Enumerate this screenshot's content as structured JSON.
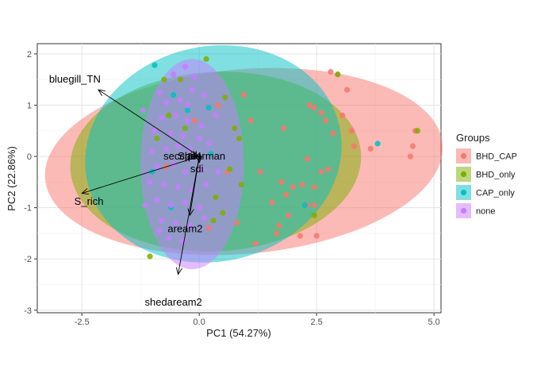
{
  "chart_data": {
    "type": "scatter",
    "subtype": "pca-biplot",
    "xlabel": "PC1 (54.27%)",
    "ylabel": "PC2 (22.86%)",
    "xlim": [
      -3.45,
      5.15
    ],
    "ylim": [
      -3.05,
      2.2
    ],
    "x_ticks": [
      -2.5,
      0.0,
      2.5,
      5.0
    ],
    "x_tick_labels": [
      "-2.5",
      "0.0",
      "2.5",
      "5.0"
    ],
    "y_ticks": [
      -3,
      -2,
      -1,
      0,
      1,
      2
    ],
    "y_tick_labels": [
      "-3",
      "-2",
      "-1",
      "0",
      "1",
      "2"
    ],
    "grid": true,
    "legend": {
      "title": "Groups",
      "placement": "right",
      "entries": [
        {
          "label": "BHD_CAP",
          "color": "#F8766D"
        },
        {
          "label": "BHD_only",
          "color": "#7CAE00"
        },
        {
          "label": "CAP_only",
          "color": "#00BFC4"
        },
        {
          "label": "none",
          "color": "#C77CFF"
        }
      ]
    },
    "ellipses": [
      {
        "group": "BHD_CAP",
        "cx": 0.95,
        "cy": -0.1,
        "rx": 4.25,
        "ry": 1.8,
        "angle_deg": 5
      },
      {
        "group": "BHD_only",
        "cx": 0.35,
        "cy": -0.1,
        "rx": 3.1,
        "ry": 1.75,
        "angle_deg": 3
      },
      {
        "group": "CAP_only",
        "cx": 0.3,
        "cy": 0.05,
        "rx": 2.75,
        "ry": 2.1,
        "angle_deg": 12
      },
      {
        "group": "none",
        "cx": -0.15,
        "cy": -0.15,
        "rx": 1.1,
        "ry": 2.05,
        "angle_deg": 0
      }
    ],
    "loadings": [
      {
        "name": "bluegill_TN",
        "x": -2.15,
        "y": 1.3,
        "label_x": -2.65,
        "label_y": 1.5
      },
      {
        "name": "S_rich",
        "x": -2.5,
        "y": -0.72,
        "label_x": -2.35,
        "label_y": -0.88
      },
      {
        "name": "shedaream2",
        "x": -0.45,
        "y": -2.3,
        "label_x": -0.55,
        "label_y": -2.85
      },
      {
        "name": "aream2",
        "x": -0.2,
        "y": -1.15,
        "label_x": -0.3,
        "label_y": -1.42
      },
      {
        "name": "secchi",
        "x": -0.08,
        "y": 0.02,
        "label_x": -0.45,
        "label_y": 0.0
      },
      {
        "name": "pH",
        "x": 0.02,
        "y": 0.04,
        "label_x": -0.1,
        "label_y": 0.0
      },
      {
        "name": "alk",
        "x": 0.03,
        "y": 0.02,
        "label_x": -0.12,
        "label_y": 0.02
      },
      {
        "name": "Spearman",
        "x": 0.05,
        "y": 0.0,
        "label_x": 0.05,
        "label_y": 0.0
      },
      {
        "name": "sdi",
        "x": 0.0,
        "y": -0.12,
        "label_x": -0.05,
        "label_y": -0.25
      }
    ],
    "points": [
      {
        "group": "BHD_CAP",
        "x": 2.8,
        "y": 1.65
      },
      {
        "group": "BHD_CAP",
        "x": 2.95,
        "y": 1.6
      },
      {
        "group": "BHD_CAP",
        "x": 3.15,
        "y": 1.3
      },
      {
        "group": "BHD_CAP",
        "x": 2.35,
        "y": 1.0
      },
      {
        "group": "BHD_CAP",
        "x": 2.45,
        "y": 0.95
      },
      {
        "group": "BHD_CAP",
        "x": 2.6,
        "y": 0.85
      },
      {
        "group": "BHD_CAP",
        "x": 2.7,
        "y": 0.7
      },
      {
        "group": "BHD_CAP",
        "x": 3.05,
        "y": 0.8
      },
      {
        "group": "BHD_CAP",
        "x": 2.85,
        "y": 0.45
      },
      {
        "group": "BHD_CAP",
        "x": 3.25,
        "y": 0.5
      },
      {
        "group": "BHD_CAP",
        "x": 3.3,
        "y": 0.2
      },
      {
        "group": "BHD_CAP",
        "x": 3.65,
        "y": 0.15
      },
      {
        "group": "BHD_CAP",
        "x": 4.6,
        "y": 0.5
      },
      {
        "group": "BHD_CAP",
        "x": 4.55,
        "y": 0.2
      },
      {
        "group": "BHD_CAP",
        "x": 4.5,
        "y": 0.0
      },
      {
        "group": "BHD_CAP",
        "x": 2.3,
        "y": -0.05
      },
      {
        "group": "BHD_CAP",
        "x": 2.6,
        "y": -0.3
      },
      {
        "group": "BHD_CAP",
        "x": 2.75,
        "y": -0.25
      },
      {
        "group": "BHD_CAP",
        "x": 2.45,
        "y": -0.6
      },
      {
        "group": "BHD_CAP",
        "x": 2.2,
        "y": -0.55
      },
      {
        "group": "BHD_CAP",
        "x": 2.0,
        "y": -0.6
      },
      {
        "group": "BHD_CAP",
        "x": 1.75,
        "y": -0.5
      },
      {
        "group": "BHD_CAP",
        "x": 1.85,
        "y": -0.75
      },
      {
        "group": "BHD_CAP",
        "x": 2.3,
        "y": -0.95
      },
      {
        "group": "BHD_CAP",
        "x": 2.45,
        "y": -0.95
      },
      {
        "group": "BHD_CAP",
        "x": 1.9,
        "y": -1.15
      },
      {
        "group": "BHD_CAP",
        "x": 1.7,
        "y": -1.35
      },
      {
        "group": "BHD_CAP",
        "x": 1.65,
        "y": -1.5
      },
      {
        "group": "BHD_CAP",
        "x": 2.15,
        "y": -1.55
      },
      {
        "group": "BHD_CAP",
        "x": 2.5,
        "y": -1.55
      },
      {
        "group": "BHD_CAP",
        "x": 1.8,
        "y": 0.55
      },
      {
        "group": "BHD_CAP",
        "x": 1.3,
        "y": -0.3
      },
      {
        "group": "BHD_CAP",
        "x": 1.55,
        "y": -0.9
      },
      {
        "group": "BHD_CAP",
        "x": 0.95,
        "y": 1.2
      },
      {
        "group": "BHD_CAP",
        "x": 1.1,
        "y": 0.7
      },
      {
        "group": "BHD_CAP",
        "x": 0.8,
        "y": -1.3
      },
      {
        "group": "BHD_CAP",
        "x": 1.2,
        "y": -1.7
      },
      {
        "group": "BHD_CAP",
        "x": 0.4,
        "y": 1.0
      },
      {
        "group": "BHD_CAP",
        "x": 0.2,
        "y": -1.4
      },
      {
        "group": "BHD_CAP",
        "x": -0.1,
        "y": 0.7
      },
      {
        "group": "BHD_CAP",
        "x": 0.6,
        "y": -0.3
      },
      {
        "group": "BHD_CAP",
        "x": -0.7,
        "y": -0.2
      },
      {
        "group": "BHD_only",
        "x": 2.95,
        "y": 1.6
      },
      {
        "group": "BHD_only",
        "x": 4.65,
        "y": 0.5
      },
      {
        "group": "BHD_only",
        "x": 2.45,
        "y": -1.15
      },
      {
        "group": "BHD_only",
        "x": -1.05,
        "y": -1.95
      },
      {
        "group": "BHD_only",
        "x": -0.75,
        "y": 1.5
      },
      {
        "group": "BHD_only",
        "x": -0.4,
        "y": 1.5
      },
      {
        "group": "BHD_only",
        "x": 0.15,
        "y": 1.9
      },
      {
        "group": "BHD_only",
        "x": 0.55,
        "y": 1.15
      },
      {
        "group": "BHD_only",
        "x": 0.75,
        "y": 0.55
      },
      {
        "group": "BHD_only",
        "x": 0.85,
        "y": 0.35
      },
      {
        "group": "BHD_only",
        "x": 0.65,
        "y": -0.25
      },
      {
        "group": "BHD_only",
        "x": 0.9,
        "y": -0.55
      },
      {
        "group": "BHD_only",
        "x": 0.35,
        "y": -0.8
      },
      {
        "group": "BHD_only",
        "x": 0.5,
        "y": -1.1
      },
      {
        "group": "BHD_only",
        "x": 0.3,
        "y": -1.25
      },
      {
        "group": "BHD_only",
        "x": -0.65,
        "y": 0.8
      },
      {
        "group": "BHD_only",
        "x": -0.9,
        "y": 0.35
      },
      {
        "group": "BHD_only",
        "x": -0.3,
        "y": 0.55
      },
      {
        "group": "CAP_only",
        "x": 3.8,
        "y": 0.25
      },
      {
        "group": "CAP_only",
        "x": 2.25,
        "y": -0.95
      },
      {
        "group": "CAP_only",
        "x": -0.95,
        "y": 1.78
      },
      {
        "group": "CAP_only",
        "x": 0.2,
        "y": 0.95
      },
      {
        "group": "CAP_only",
        "x": -0.55,
        "y": 1.2
      },
      {
        "group": "CAP_only",
        "x": -0.25,
        "y": 0.9
      },
      {
        "group": "CAP_only",
        "x": 0.25,
        "y": 0.05
      },
      {
        "group": "CAP_only",
        "x": -1.0,
        "y": -0.3
      },
      {
        "group": "CAP_only",
        "x": -0.6,
        "y": -1.0
      },
      {
        "group": "none",
        "x": -0.85,
        "y": 1.25
      },
      {
        "group": "none",
        "x": -0.55,
        "y": 1.6
      },
      {
        "group": "none",
        "x": -0.3,
        "y": 1.75
      },
      {
        "group": "none",
        "x": -0.1,
        "y": 1.55
      },
      {
        "group": "none",
        "x": -0.7,
        "y": 1.05
      },
      {
        "group": "none",
        "x": -0.4,
        "y": 1.1
      },
      {
        "group": "none",
        "x": -0.15,
        "y": 1.3
      },
      {
        "group": "none",
        "x": 0.1,
        "y": 1.2
      },
      {
        "group": "none",
        "x": -0.8,
        "y": 0.75
      },
      {
        "group": "none",
        "x": -0.5,
        "y": 0.8
      },
      {
        "group": "none",
        "x": -0.25,
        "y": 0.7
      },
      {
        "group": "none",
        "x": 0.05,
        "y": 0.6
      },
      {
        "group": "none",
        "x": -0.95,
        "y": 0.5
      },
      {
        "group": "none",
        "x": -0.6,
        "y": 0.45
      },
      {
        "group": "none",
        "x": -0.35,
        "y": 0.4
      },
      {
        "group": "none",
        "x": 0.0,
        "y": 0.35
      },
      {
        "group": "none",
        "x": -1.0,
        "y": 0.1
      },
      {
        "group": "none",
        "x": -0.7,
        "y": 0.15
      },
      {
        "group": "none",
        "x": -0.45,
        "y": 0.2
      },
      {
        "group": "none",
        "x": -0.2,
        "y": 0.15
      },
      {
        "group": "none",
        "x": 0.2,
        "y": 0.25
      },
      {
        "group": "none",
        "x": -0.9,
        "y": -0.2
      },
      {
        "group": "none",
        "x": -0.55,
        "y": -0.15
      },
      {
        "group": "none",
        "x": -0.3,
        "y": -0.3
      },
      {
        "group": "none",
        "x": 0.05,
        "y": -0.25
      },
      {
        "group": "none",
        "x": -1.05,
        "y": -0.5
      },
      {
        "group": "none",
        "x": -0.75,
        "y": -0.55
      },
      {
        "group": "none",
        "x": -0.45,
        "y": -0.6
      },
      {
        "group": "none",
        "x": -0.15,
        "y": -0.65
      },
      {
        "group": "none",
        "x": 0.15,
        "y": -0.55
      },
      {
        "group": "none",
        "x": -0.9,
        "y": -0.85
      },
      {
        "group": "none",
        "x": -0.6,
        "y": -0.95
      },
      {
        "group": "none",
        "x": -0.3,
        "y": -0.9
      },
      {
        "group": "none",
        "x": 0.0,
        "y": -1.0
      },
      {
        "group": "none",
        "x": -0.8,
        "y": -1.25
      },
      {
        "group": "none",
        "x": -0.5,
        "y": -1.3
      },
      {
        "group": "none",
        "x": -0.2,
        "y": -1.35
      },
      {
        "group": "none",
        "x": 0.1,
        "y": -1.2
      },
      {
        "group": "none",
        "x": -0.65,
        "y": -1.6
      },
      {
        "group": "none",
        "x": -0.35,
        "y": -1.65
      },
      {
        "group": "none",
        "x": -1.2,
        "y": 0.9
      },
      {
        "group": "none",
        "x": -1.15,
        "y": -0.95
      },
      {
        "group": "none",
        "x": 0.35,
        "y": 0.8
      },
      {
        "group": "none",
        "x": 0.4,
        "y": -0.3
      },
      {
        "group": "none",
        "x": -0.25,
        "y": 1.0
      },
      {
        "group": "none",
        "x": -0.85,
        "y": -1.45
      }
    ]
  }
}
